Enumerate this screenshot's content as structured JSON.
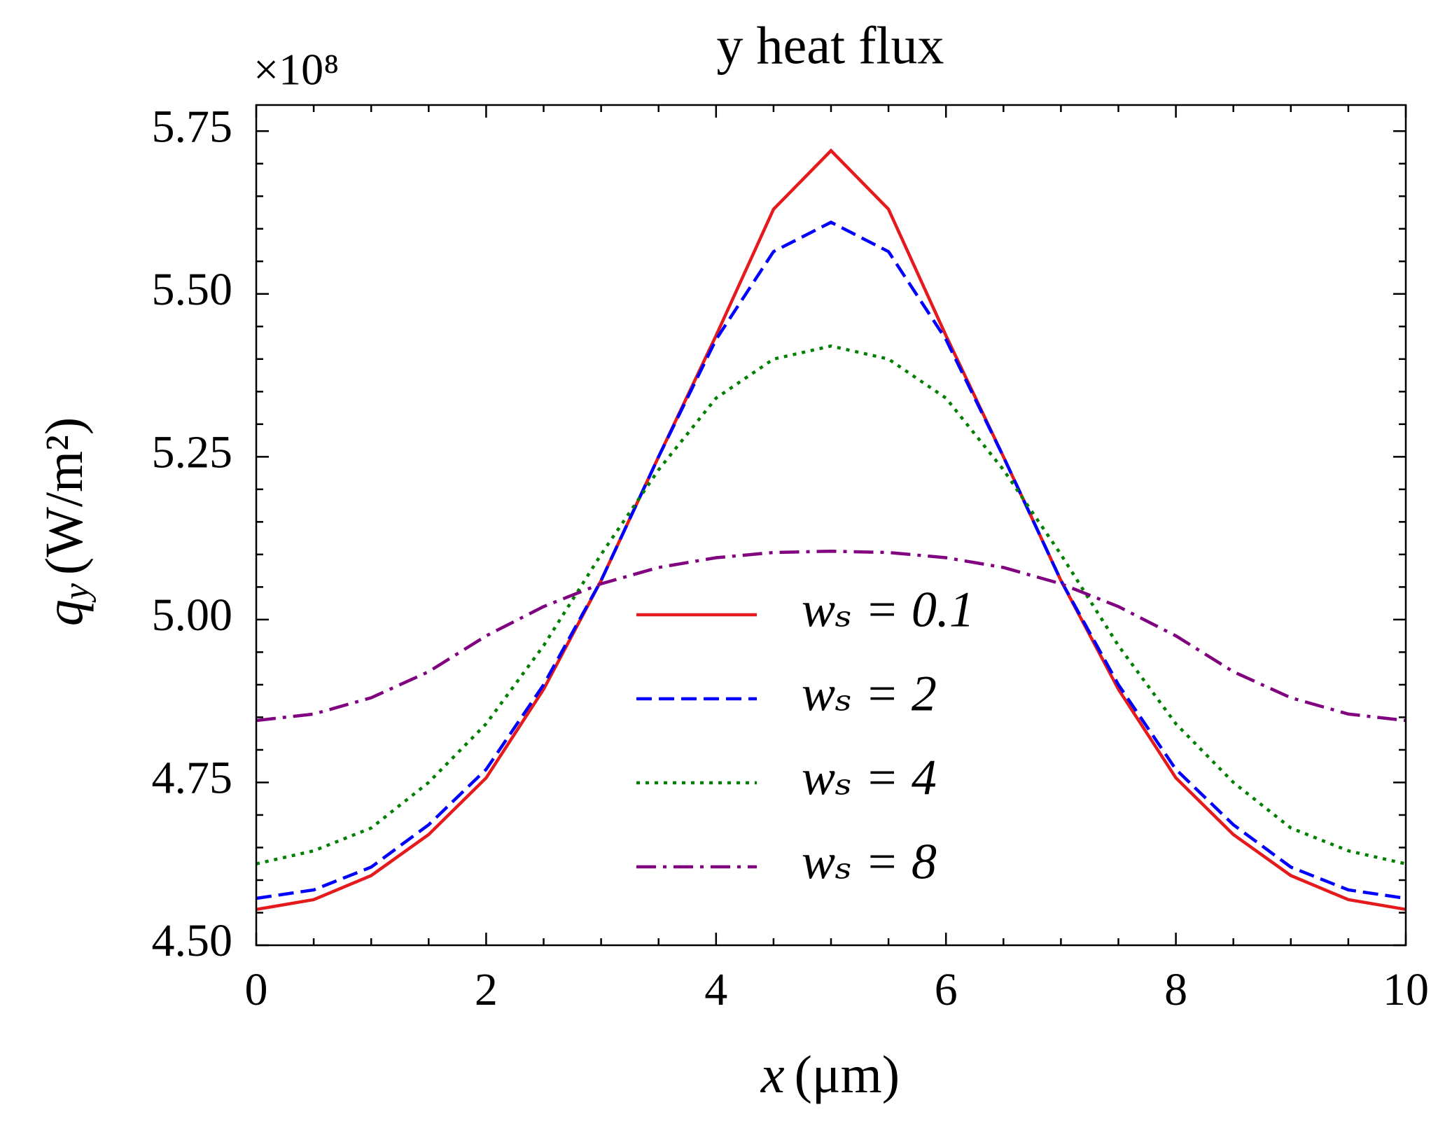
{
  "chart_data": {
    "type": "line",
    "title": "y heat flux",
    "y_offset_label": "×10⁸",
    "xlabel": {
      "symbol": "x",
      "unit": "(μm)"
    },
    "ylabel": {
      "symbol": "q",
      "subscript": "y",
      "unit": "(W/m²)"
    },
    "x": [
      0,
      0.5,
      1,
      1.5,
      2,
      2.5,
      3,
      3.5,
      4,
      4.5,
      5,
      5.5,
      6,
      6.5,
      7,
      7.5,
      8,
      8.5,
      9,
      9.5,
      10
    ],
    "series": [
      {
        "name": "wₛ = 0.1",
        "color": "#e41a1c",
        "dash": "solid",
        "values": [
          4.555,
          4.57,
          4.607,
          4.67,
          4.757,
          4.893,
          5.06,
          5.25,
          5.436,
          5.63,
          5.72,
          5.63,
          5.436,
          5.25,
          5.06,
          4.893,
          4.757,
          4.67,
          4.607,
          4.57,
          4.555
        ]
      },
      {
        "name": "wₛ = 2",
        "color": "#0000ff",
        "dash": "dashed",
        "values": [
          4.572,
          4.585,
          4.62,
          4.685,
          4.77,
          4.9,
          5.06,
          5.25,
          5.43,
          5.565,
          5.61,
          5.565,
          5.43,
          5.25,
          5.06,
          4.9,
          4.77,
          4.685,
          4.62,
          4.585,
          4.572
        ]
      },
      {
        "name": "wₛ = 4",
        "color": "#007f00",
        "dash": "dotted",
        "values": [
          4.625,
          4.645,
          4.68,
          4.75,
          4.84,
          4.96,
          5.1,
          5.23,
          5.34,
          5.4,
          5.42,
          5.4,
          5.34,
          5.23,
          5.1,
          4.96,
          4.84,
          4.75,
          4.68,
          4.645,
          4.625
        ]
      },
      {
        "name": "wₛ = 8",
        "color": "#800080",
        "dash": "dashdot",
        "values": [
          4.845,
          4.855,
          4.88,
          4.92,
          4.975,
          5.02,
          5.055,
          5.08,
          5.095,
          5.103,
          5.105,
          5.103,
          5.095,
          5.08,
          5.055,
          5.02,
          4.975,
          4.92,
          4.88,
          4.855,
          4.845
        ]
      }
    ],
    "xlim": [
      0,
      10
    ],
    "xticks": [
      0,
      2,
      4,
      6,
      8,
      10
    ],
    "ylim": [
      4.5,
      5.79
    ],
    "yticks": [
      {
        "value": 4.5,
        "label": "4.50"
      },
      4.75,
      {
        "value": 5.0,
        "label": "5.00"
      },
      5.25,
      {
        "value": 5.5,
        "label": "5.50"
      },
      5.75
    ],
    "minor_ticks": true,
    "grid": false,
    "legend_loc": "lower center"
  }
}
